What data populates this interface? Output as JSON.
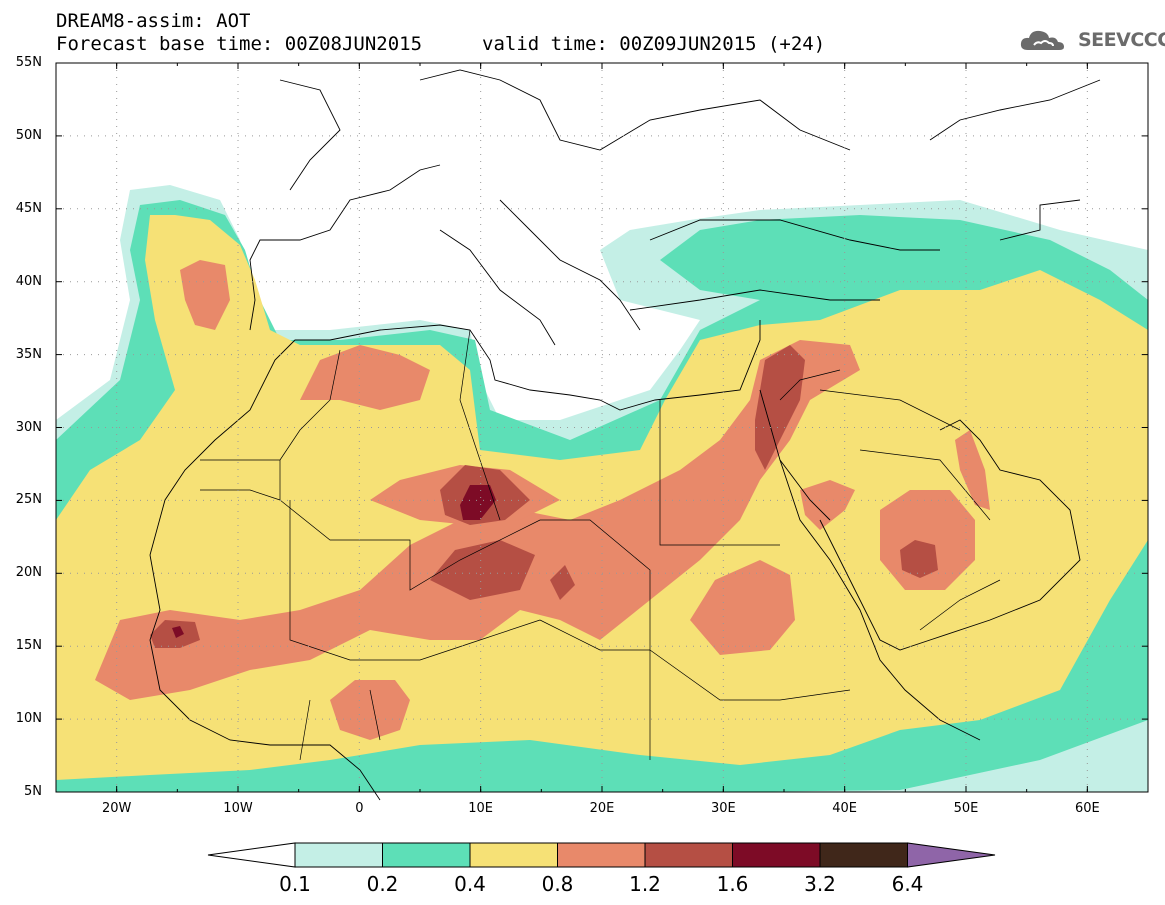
{
  "title": {
    "line1": "DREAM8-assim: AOT",
    "line2_base": "Forecast base time: 00Z08JUN2015",
    "line2_valid": "valid time: 00Z09JUN2015 (+24)"
  },
  "logo": {
    "text": "SEEVCCC",
    "icon": "cloud-icon"
  },
  "map": {
    "lat_labels": [
      "55N",
      "50N",
      "45N",
      "40N",
      "35N",
      "30N",
      "25N",
      "20N",
      "15N",
      "10N",
      "5N"
    ],
    "lon_labels": [
      "20W",
      "10W",
      "0",
      "10E",
      "20E",
      "30E",
      "40E",
      "50E",
      "60E"
    ],
    "lat_range": [
      5,
      55
    ],
    "lon_range": [
      -25,
      65
    ]
  },
  "legend": {
    "labels": [
      "0.1",
      "0.2",
      "0.4",
      "0.8",
      "1.2",
      "1.6",
      "3.2",
      "6.4"
    ],
    "colors": [
      "#ffffff",
      "#c4efe6",
      "#5ddfb7",
      "#f6e176",
      "#e8896a",
      "#b54f44",
      "#7d0b26",
      "#40271a",
      "#8f65a8"
    ]
  },
  "colors": {
    "c1": "#c4efe6",
    "c2": "#5ddfb7",
    "c3": "#f6e176",
    "c4": "#e8896a",
    "c5": "#b54f44",
    "c6": "#7d0b26"
  }
}
